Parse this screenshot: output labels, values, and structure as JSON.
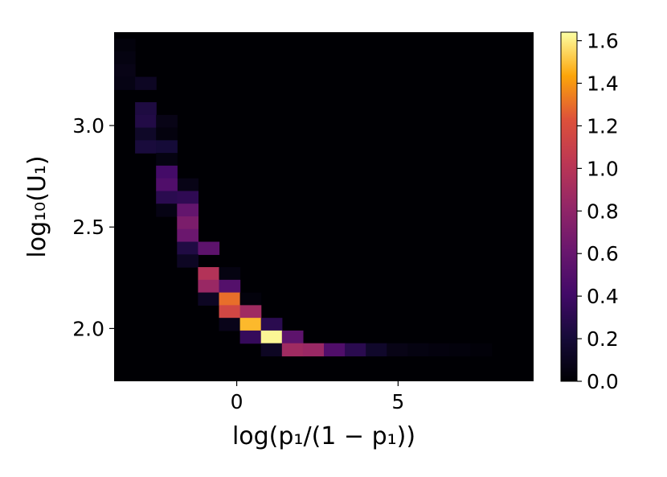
{
  "chart_data": {
    "type": "heatmap",
    "colormap": "inferno",
    "xlabel": "log(p₁/(1 − p₁))",
    "ylabel": "log₁₀(U₁)",
    "xlim": [
      -3.8,
      9.2
    ],
    "ylim": [
      1.74,
      3.46
    ],
    "x_bins": {
      "start": -3.8,
      "width": 0.65,
      "count": 20
    },
    "y_bins": {
      "start": 1.74,
      "width": 0.0625,
      "count": 28
    },
    "x_ticks": [
      {
        "value": 0,
        "label": "0"
      },
      {
        "value": 5,
        "label": "5"
      }
    ],
    "y_ticks": [
      {
        "value": 2.0,
        "label": "2.0"
      },
      {
        "value": 2.5,
        "label": "2.5"
      },
      {
        "value": 3.0,
        "label": "3.0"
      }
    ],
    "colorbar": {
      "min": 0.0,
      "max": 1.64,
      "ticks": [
        "0.0",
        "0.2",
        "0.4",
        "0.6",
        "0.8",
        "1.0",
        "1.2",
        "1.4",
        "1.6"
      ]
    },
    "cells": [
      {
        "x": -3.5,
        "y": 3.4,
        "value": 0.03
      },
      {
        "x": -3.5,
        "y": 3.34,
        "value": 0.05
      },
      {
        "x": -3.5,
        "y": 3.28,
        "value": 0.07
      },
      {
        "x": -3.5,
        "y": 3.21,
        "value": 0.06
      },
      {
        "x": -2.8,
        "y": 3.21,
        "value": 0.12
      },
      {
        "x": -2.8,
        "y": 3.09,
        "value": 0.24
      },
      {
        "x": -2.8,
        "y": 3.03,
        "value": 0.26
      },
      {
        "x": -2.1,
        "y": 3.03,
        "value": 0.07
      },
      {
        "x": -2.8,
        "y": 2.96,
        "value": 0.14
      },
      {
        "x": -2.1,
        "y": 2.96,
        "value": 0.04
      },
      {
        "x": -2.8,
        "y": 2.9,
        "value": 0.22
      },
      {
        "x": -2.1,
        "y": 2.9,
        "value": 0.2
      },
      {
        "x": -2.1,
        "y": 2.84,
        "value": 0.05
      },
      {
        "x": -2.1,
        "y": 2.78,
        "value": 0.42
      },
      {
        "x": -1.5,
        "y": 2.71,
        "value": 0.07
      },
      {
        "x": -2.1,
        "y": 2.71,
        "value": 0.48
      },
      {
        "x": -2.1,
        "y": 2.65,
        "value": 0.3
      },
      {
        "x": -1.5,
        "y": 2.65,
        "value": 0.32
      },
      {
        "x": -2.1,
        "y": 2.59,
        "value": 0.06
      },
      {
        "x": -1.5,
        "y": 2.59,
        "value": 0.58
      },
      {
        "x": -1.5,
        "y": 2.53,
        "value": 0.7
      },
      {
        "x": -1.5,
        "y": 2.46,
        "value": 0.62
      },
      {
        "x": -0.8,
        "y": 2.4,
        "value": 0.14
      },
      {
        "x": -1.5,
        "y": 2.4,
        "value": 0.25
      },
      {
        "x": -0.8,
        "y": 2.4,
        "value": 0.55
      },
      {
        "x": -1.5,
        "y": 2.34,
        "value": 0.12
      },
      {
        "x": -0.8,
        "y": 2.28,
        "value": 0.98
      },
      {
        "x": -0.2,
        "y": 2.28,
        "value": 0.05
      },
      {
        "x": -0.8,
        "y": 2.21,
        "value": 0.85
      },
      {
        "x": -0.2,
        "y": 2.21,
        "value": 0.5
      },
      {
        "x": -0.8,
        "y": 2.15,
        "value": 0.12
      },
      {
        "x": -0.2,
        "y": 2.15,
        "value": 1.3
      },
      {
        "x": 0.5,
        "y": 2.15,
        "value": 0.03
      },
      {
        "x": -0.2,
        "y": 2.09,
        "value": 1.15
      },
      {
        "x": 0.5,
        "y": 2.09,
        "value": 0.88
      },
      {
        "x": -0.2,
        "y": 2.03,
        "value": 0.08
      },
      {
        "x": 0.5,
        "y": 2.03,
        "value": 1.48
      },
      {
        "x": 1.1,
        "y": 2.03,
        "value": 0.3
      },
      {
        "x": 0.5,
        "y": 1.96,
        "value": 0.35
      },
      {
        "x": 1.1,
        "y": 1.96,
        "value": 1.62
      },
      {
        "x": 1.8,
        "y": 1.96,
        "value": 0.55
      },
      {
        "x": 1.1,
        "y": 1.9,
        "value": 0.12
      },
      {
        "x": 1.8,
        "y": 1.9,
        "value": 0.88
      },
      {
        "x": 2.4,
        "y": 1.9,
        "value": 0.85
      },
      {
        "x": 3.1,
        "y": 1.9,
        "value": 0.48
      },
      {
        "x": 3.7,
        "y": 1.9,
        "value": 0.3
      },
      {
        "x": 4.4,
        "y": 1.9,
        "value": 0.15
      },
      {
        "x": 5.0,
        "y": 1.9,
        "value": 0.07
      },
      {
        "x": 5.7,
        "y": 1.9,
        "value": 0.05
      },
      {
        "x": 6.3,
        "y": 1.9,
        "value": 0.04
      },
      {
        "x": 7.0,
        "y": 1.9,
        "value": 0.03
      },
      {
        "x": 7.6,
        "y": 1.9,
        "value": 0.02
      }
    ]
  }
}
